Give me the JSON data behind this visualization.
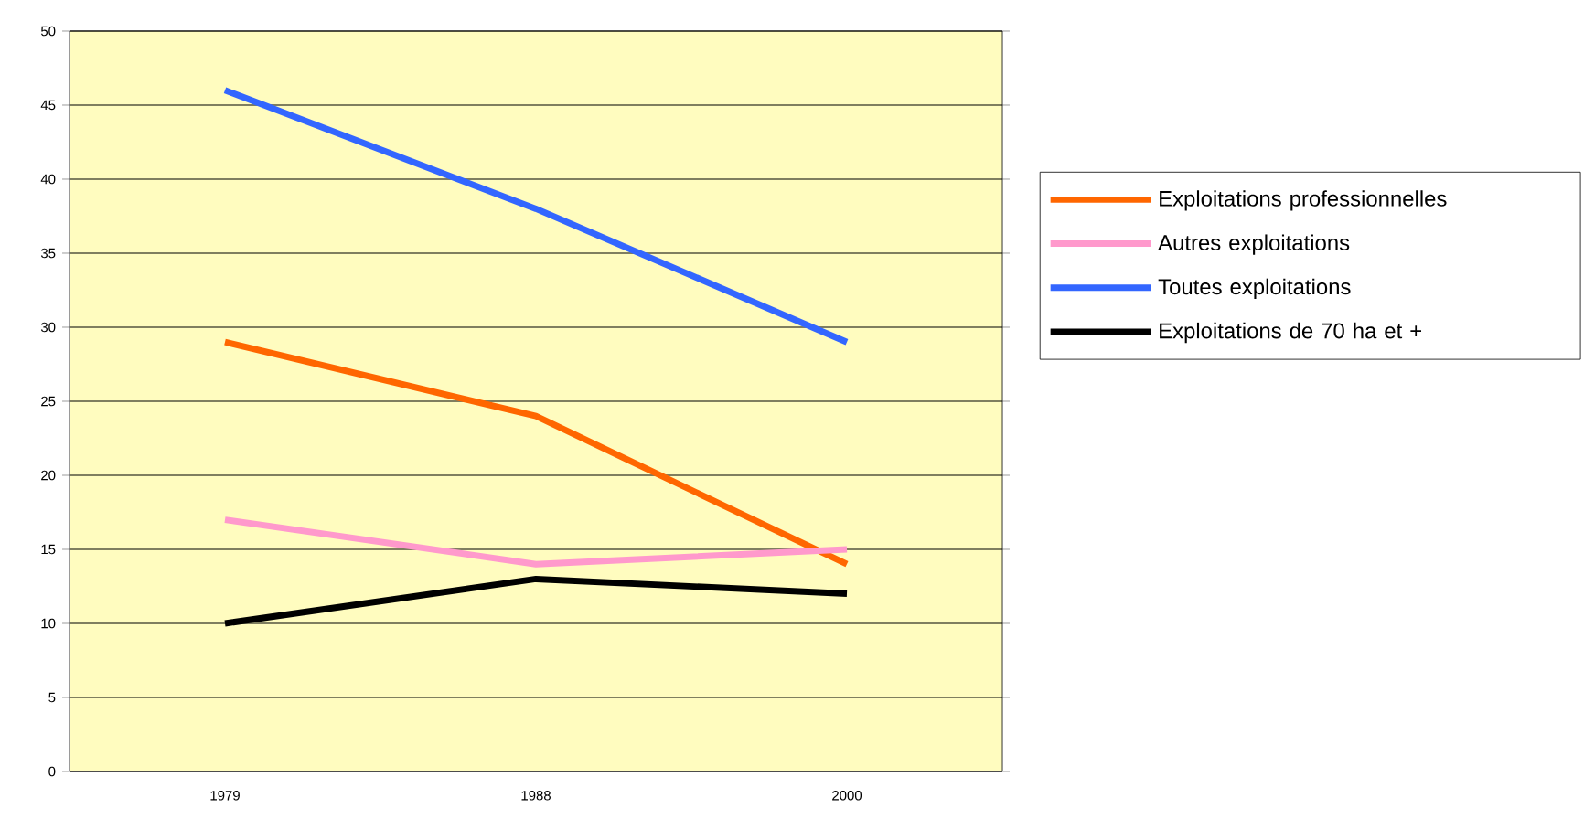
{
  "chart_data": {
    "type": "line",
    "categories": [
      "1979",
      "1988",
      "2000"
    ],
    "series": [
      {
        "name": "Exploitations professionnelles",
        "color": "#ff6600",
        "values": [
          29,
          24,
          14
        ]
      },
      {
        "name": "Autres exploitations",
        "color": "#ff99cc",
        "values": [
          17,
          14,
          15
        ]
      },
      {
        "name": "Toutes exploitations",
        "color": "#3366ff",
        "values": [
          46,
          38,
          29
        ]
      },
      {
        "name": "Exploitations de 70 ha et +",
        "color": "#000000",
        "values": [
          10,
          13,
          12
        ]
      }
    ],
    "ylim": [
      0,
      50
    ],
    "yticks": [
      0,
      5,
      10,
      15,
      20,
      25,
      30,
      35,
      40,
      45,
      50
    ],
    "grid": "y",
    "legend": "right"
  }
}
